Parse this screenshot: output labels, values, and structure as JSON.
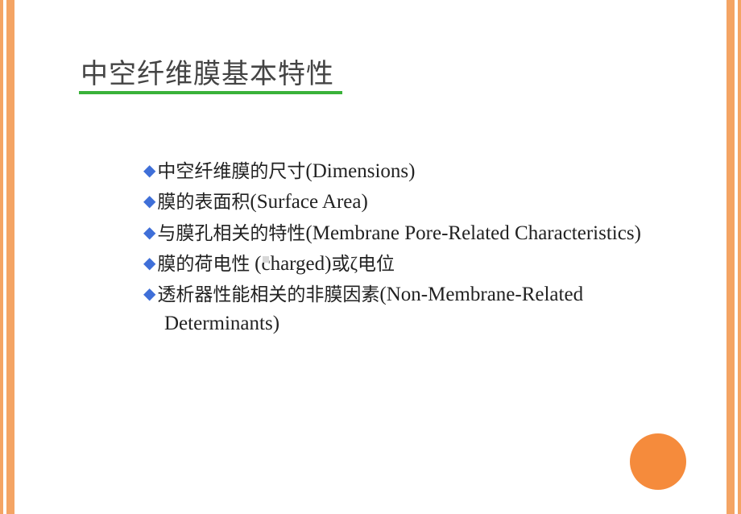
{
  "colors": {
    "stripe": "#f4a464",
    "underline": "#3ab23a",
    "bullet": "#3f6fd8",
    "circle": "#f58b3c",
    "title_text": "#444444",
    "body_text": "#222222",
    "background": "#ffffff"
  },
  "title": "中空纤维膜基本特性",
  "title_fontsize": 34,
  "body_fontsize_cn": 23,
  "body_fontsize_en": 25,
  "items": [
    {
      "cn": "中空纤维膜的尺寸",
      "en_open": "(",
      "en": "Dimensions",
      "en_close": ")"
    },
    {
      "cn": "膜的表面积",
      "en_open": "(",
      "en": "Surface Area",
      "en_close": ")"
    },
    {
      "cn": "与膜孔相关的特性",
      "en_open": "(",
      "en": "Membrane Pore-Related Characteristics",
      "en_close": ")"
    },
    {
      "cn": "膜的荷电性 ",
      "en_open": "(",
      "en": "charged",
      "en_close": ")",
      "tail_cn": "或ζ电位"
    },
    {
      "cn": "透析器性能相关的非膜因素",
      "en_open": "(",
      "en": "Non-Membrane-Related Determinants",
      "en_close": ")"
    }
  ],
  "bullet_glyph": "◆"
}
